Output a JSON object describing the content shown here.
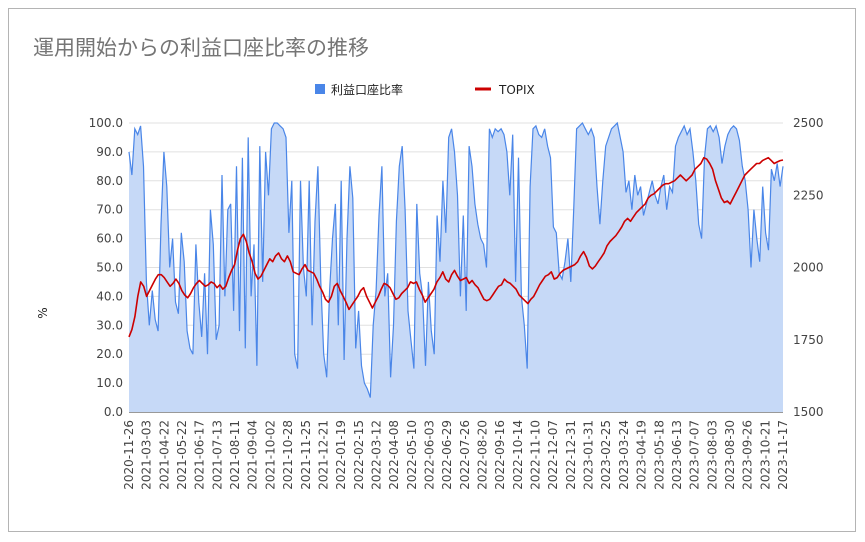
{
  "chart_data": {
    "type": "area+line",
    "title": "運用開始からの利益口座比率の推移",
    "ylabel_left": "%",
    "ylim_left": [
      0,
      100
    ],
    "yticks_left": [
      "0.0",
      "10.0",
      "20.0",
      "30.0",
      "40.0",
      "50.0",
      "60.0",
      "70.0",
      "80.0",
      "90.0",
      "100.0"
    ],
    "ylim_right": [
      1500,
      2500
    ],
    "yticks_right": [
      "1500",
      "1750",
      "2000",
      "2250",
      "2500"
    ],
    "x_tick_labels": [
      "2020-11-26",
      "2021-03-03",
      "2021-04-22",
      "2021-05-22",
      "2021-06-17",
      "2021-07-13",
      "2021-08-11",
      "2021-09-04",
      "2021-10-02",
      "2021-10-28",
      "2021-11-25",
      "2021-12-21",
      "2022-01-19",
      "2022-02-15",
      "2022-03-12",
      "2022-04-08",
      "2022-05-10",
      "2022-06-03",
      "2022-06-29",
      "2022-07-26",
      "2022-08-20",
      "2022-09-16",
      "2022-10-14",
      "2022-11-10",
      "2022-12-07",
      "2022-12-31",
      "2023-01-31",
      "2023-02-25",
      "2023-03-24",
      "2023-04-19",
      "2023-05-18",
      "2023-06-13",
      "2023-07-07",
      "2023-08-03",
      "2023-08-30",
      "2023-09-26",
      "2023-10-21",
      "2023-11-17"
    ],
    "legend_position": "top-center",
    "series": [
      {
        "name": "利益口座比率",
        "axis": "left",
        "color": "#4a86e8",
        "fill": "#c6d9f7",
        "values": [
          90,
          82,
          98,
          96,
          99,
          85,
          45,
          30,
          42,
          32,
          28,
          65,
          90,
          78,
          50,
          60,
          38,
          34,
          62,
          52,
          28,
          22,
          20,
          58,
          38,
          26,
          48,
          20,
          70,
          58,
          25,
          30,
          82,
          40,
          70,
          72,
          35,
          85,
          28,
          88,
          22,
          95,
          40,
          58,
          16,
          92,
          45,
          90,
          75,
          98,
          100,
          100,
          99,
          98,
          95,
          62,
          80,
          20,
          15,
          80,
          50,
          40,
          80,
          30,
          66,
          85,
          45,
          20,
          12,
          42,
          60,
          72,
          30,
          80,
          18,
          60,
          85,
          74,
          22,
          35,
          16,
          10,
          8,
          5,
          30,
          42,
          68,
          85,
          40,
          48,
          12,
          30,
          66,
          85,
          92,
          70,
          35,
          25,
          15,
          72,
          48,
          40,
          16,
          45,
          28,
          20,
          68,
          52,
          80,
          62,
          95,
          98,
          90,
          75,
          40,
          68,
          35,
          92,
          85,
          72,
          65,
          60,
          58,
          50,
          98,
          95,
          98,
          97,
          98,
          96,
          90,
          75,
          96,
          45,
          88,
          40,
          30,
          15,
          78,
          98,
          99,
          96,
          95,
          98,
          92,
          88,
          64,
          62,
          48,
          46,
          52,
          60,
          45,
          70,
          98,
          99,
          100,
          98,
          96,
          98,
          95,
          78,
          65,
          80,
          92,
          95,
          98,
          99,
          100,
          95,
          90,
          76,
          80,
          70,
          82,
          75,
          78,
          68,
          72,
          76,
          80,
          75,
          72,
          78,
          82,
          70,
          78,
          76,
          92,
          95,
          97,
          99,
          96,
          98,
          90,
          80,
          65,
          60,
          88,
          98,
          99,
          97,
          99,
          95,
          86,
          92,
          96,
          98,
          99,
          98,
          94,
          85,
          80,
          70,
          50,
          70,
          60,
          52,
          78,
          62,
          56,
          84,
          80,
          86,
          78,
          85
        ]
      },
      {
        "name": "TOPIX",
        "axis": "right",
        "color": "#cc0000",
        "values": [
          1760,
          1785,
          1830,
          1900,
          1950,
          1935,
          1900,
          1920,
          1940,
          1960,
          1975,
          1975,
          1965,
          1950,
          1935,
          1945,
          1960,
          1945,
          1920,
          1905,
          1895,
          1910,
          1930,
          1945,
          1955,
          1945,
          1935,
          1940,
          1950,
          1945,
          1930,
          1940,
          1925,
          1935,
          1965,
          1990,
          2010,
          2060,
          2100,
          2115,
          2090,
          2050,
          2020,
          1980,
          1960,
          1970,
          1990,
          2010,
          2030,
          2020,
          2040,
          2050,
          2030,
          2020,
          2040,
          2020,
          1985,
          1980,
          1975,
          1995,
          2010,
          1990,
          1985,
          1980,
          1960,
          1935,
          1915,
          1890,
          1880,
          1900,
          1935,
          1945,
          1920,
          1900,
          1880,
          1855,
          1870,
          1885,
          1900,
          1920,
          1930,
          1900,
          1880,
          1860,
          1880,
          1900,
          1925,
          1945,
          1940,
          1930,
          1910,
          1890,
          1895,
          1910,
          1920,
          1930,
          1950,
          1945,
          1950,
          1925,
          1905,
          1880,
          1895,
          1910,
          1925,
          1950,
          1965,
          1985,
          1960,
          1950,
          1975,
          1990,
          1970,
          1955,
          1960,
          1965,
          1945,
          1955,
          1940,
          1930,
          1910,
          1890,
          1885,
          1890,
          1905,
          1920,
          1935,
          1940,
          1960,
          1950,
          1945,
          1935,
          1925,
          1905,
          1895,
          1885,
          1875,
          1890,
          1900,
          1920,
          1940,
          1955,
          1970,
          1975,
          1985,
          1960,
          1965,
          1980,
          1990,
          1995,
          2000,
          2005,
          2010,
          2020,
          2040,
          2055,
          2035,
          2005,
          1995,
          2005,
          2020,
          2035,
          2050,
          2075,
          2090,
          2100,
          2110,
          2125,
          2140,
          2160,
          2170,
          2160,
          2175,
          2190,
          2200,
          2210,
          2220,
          2240,
          2250,
          2255,
          2265,
          2275,
          2285,
          2290,
          2290,
          2295,
          2300,
          2310,
          2320,
          2310,
          2300,
          2310,
          2320,
          2340,
          2350,
          2360,
          2380,
          2375,
          2360,
          2340,
          2300,
          2270,
          2240,
          2225,
          2230,
          2220,
          2240,
          2260,
          2280,
          2300,
          2320,
          2330,
          2340,
          2350,
          2360,
          2360,
          2370,
          2375,
          2380,
          2370,
          2360,
          2365,
          2370,
          2372
        ]
      }
    ]
  }
}
